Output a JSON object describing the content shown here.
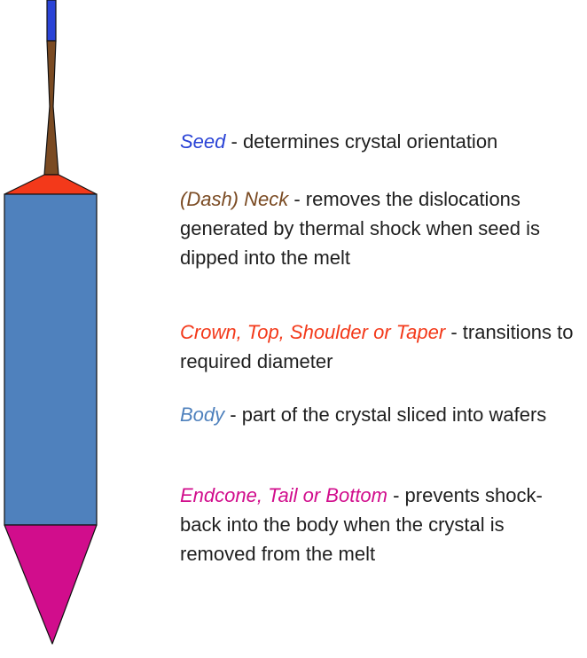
{
  "colors": {
    "seed": "#2a43d6",
    "neck": "#7a4a22",
    "crown": "#f3391a",
    "body": "#4f81bd",
    "endcone": "#d10d8c",
    "outline": "#111111",
    "text": "#1f1f1f"
  },
  "legend": {
    "seed": {
      "term": "Seed",
      "description": " - determines crystal orientation"
    },
    "neck": {
      "term": "(Dash) Neck",
      "description": " - removes the dislocations generated by thermal shock when seed is dipped into the melt"
    },
    "crown": {
      "term": "Crown, Top, Shoulder or Taper",
      "description": " - transitions to required diameter"
    },
    "body": {
      "term": "Body",
      "description": " - part of the crystal sliced into wafers"
    },
    "endcone": {
      "term": "Endcone, Tail or Bottom",
      "description": " - prevents shock-back into the body when the crystal is removed from the melt"
    }
  }
}
